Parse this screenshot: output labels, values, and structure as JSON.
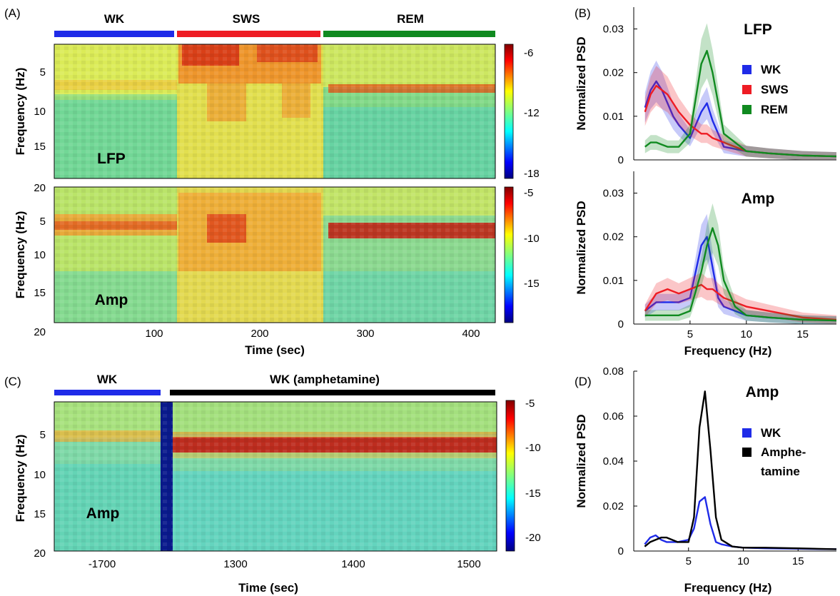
{
  "colors": {
    "wk": "#1f2be8",
    "sws": "#ee1c24",
    "rem": "#108a20",
    "amph": "#000000"
  },
  "panelA": {
    "letter": "(A)",
    "state_labels": [
      "WK",
      "SWS",
      "REM"
    ],
    "lfp_label": "LFP",
    "amp_label": "Amp",
    "ylabel": "Frequency (Hz)",
    "yticks_top": [
      "5",
      "10",
      "15"
    ],
    "yticks_bottom": [
      "20",
      "5",
      "10",
      "15"
    ],
    "ytick_bottom_end": "20",
    "xlabel": "Time (sec)",
    "xticks": [
      "100",
      "200",
      "300",
      "400"
    ],
    "cbar_top": [
      "-6",
      "-12",
      "-18"
    ],
    "cbar_bottom": [
      "-5",
      "-10",
      "-15"
    ]
  },
  "panelC": {
    "letter": "(C)",
    "state_labels": [
      "WK",
      "WK  (amphetamine)"
    ],
    "amp_label": "Amp",
    "ylabel": "Frequency (Hz)",
    "yticks": [
      "5",
      "10",
      "15",
      "20"
    ],
    "xlabel": "Time (sec)",
    "xticks": [
      "-1700",
      "1300",
      "1400",
      "1500"
    ],
    "cbar": [
      "-5",
      "-10",
      "-15",
      "-20"
    ]
  },
  "chart_data": [
    {
      "type": "line",
      "panel": "(B) top",
      "title": "LFP",
      "xlabel": "",
      "ylabel": "Normalized PSD",
      "xlim": [
        0,
        18
      ],
      "ylim": [
        0,
        0.035
      ],
      "yticks": [
        "0",
        "0.01",
        "0.02",
        "0.03"
      ],
      "legend": "right",
      "x": [
        1,
        1.5,
        2,
        2.5,
        3,
        3.5,
        4,
        5,
        6,
        6.5,
        7,
        8,
        10,
        12,
        15,
        18
      ],
      "series": [
        {
          "name": "WK",
          "values": [
            0.012,
            0.016,
            0.018,
            0.016,
            0.013,
            0.01,
            0.008,
            0.005,
            0.011,
            0.013,
            0.009,
            0.003,
            0.002,
            0.0015,
            0.001,
            0.0008
          ]
        },
        {
          "name": "SWS",
          "values": [
            0.011,
            0.015,
            0.017,
            0.016,
            0.015,
            0.013,
            0.011,
            0.008,
            0.006,
            0.006,
            0.005,
            0.004,
            0.002,
            0.0015,
            0.001,
            0.0008
          ]
        },
        {
          "name": "REM",
          "values": [
            0.003,
            0.004,
            0.004,
            0.0035,
            0.003,
            0.003,
            0.003,
            0.006,
            0.022,
            0.025,
            0.02,
            0.006,
            0.002,
            0.0015,
            0.001,
            0.0008
          ]
        }
      ]
    },
    {
      "type": "line",
      "panel": "(B) bottom",
      "title": "Amp",
      "xlabel": "Frequency (Hz)",
      "ylabel": "Normalized PSD",
      "xlim": [
        0,
        18
      ],
      "ylim": [
        0,
        0.035
      ],
      "xticks": [
        "5",
        "10",
        "15"
      ],
      "yticks": [
        "0",
        "0.01",
        "0.02",
        "0.03"
      ],
      "x": [
        1,
        1.5,
        2,
        3,
        4,
        5,
        6,
        6.5,
        7,
        7.5,
        8,
        9,
        10,
        12,
        15,
        18
      ],
      "series": [
        {
          "name": "WK",
          "values": [
            0.003,
            0.004,
            0.005,
            0.005,
            0.005,
            0.006,
            0.018,
            0.02,
            0.013,
            0.006,
            0.004,
            0.003,
            0.002,
            0.0015,
            0.001,
            0.0008
          ]
        },
        {
          "name": "SWS",
          "values": [
            0.003,
            0.005,
            0.007,
            0.008,
            0.007,
            0.008,
            0.009,
            0.008,
            0.008,
            0.007,
            0.006,
            0.005,
            0.004,
            0.003,
            0.0015,
            0.001
          ]
        },
        {
          "name": "REM",
          "values": [
            0.002,
            0.002,
            0.002,
            0.002,
            0.002,
            0.003,
            0.012,
            0.018,
            0.022,
            0.018,
            0.01,
            0.004,
            0.002,
            0.0015,
            0.001,
            0.0008
          ]
        }
      ]
    },
    {
      "type": "line",
      "panel": "(D)",
      "title": "Amp",
      "xlabel": "Frequency (Hz)",
      "ylabel": "Normalized PSD",
      "xlim": [
        0,
        18.5
      ],
      "ylim": [
        0,
        0.08
      ],
      "xticks": [
        "5",
        "10",
        "15"
      ],
      "yticks": [
        "0",
        "0.02",
        "0.04",
        "0.06",
        "0.08"
      ],
      "legend": "right",
      "x": [
        1,
        1.5,
        2,
        2.5,
        3,
        4,
        5,
        5.5,
        6,
        6.5,
        7,
        7.5,
        8,
        9,
        10,
        12,
        15,
        18.5
      ],
      "series": [
        {
          "name": "WK",
          "values": [
            0.003,
            0.006,
            0.007,
            0.005,
            0.004,
            0.004,
            0.005,
            0.01,
            0.022,
            0.024,
            0.012,
            0.004,
            0.003,
            0.002,
            0.0015,
            0.0012,
            0.001,
            0.0008
          ]
        },
        {
          "name": "Amphetamine",
          "values": [
            0.002,
            0.004,
            0.005,
            0.006,
            0.006,
            0.004,
            0.004,
            0.015,
            0.055,
            0.071,
            0.045,
            0.015,
            0.005,
            0.002,
            0.0015,
            0.0015,
            0.0012,
            0.0008
          ]
        }
      ]
    }
  ],
  "legendB": [
    "WK",
    "SWS",
    "REM"
  ],
  "legendD": [
    "WK",
    "Amphe-",
    "tamine"
  ],
  "letters": {
    "b": "(B)",
    "d": "(D)"
  }
}
